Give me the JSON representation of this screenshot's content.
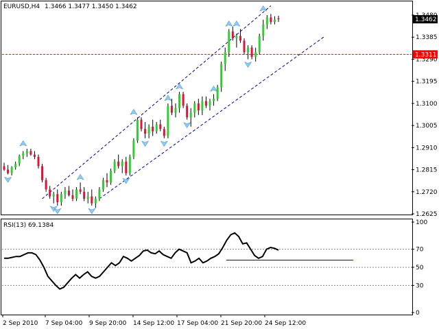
{
  "window": {
    "symbol_label": "EURUSD,H4",
    "ohlc_label": "1.3466 1.3477 1.3450 1.3462"
  },
  "rsi_panel": {
    "label": "RSI(13) 69.1384"
  },
  "colors": {
    "bull_candle": "#32cd32",
    "bear_candle": "#dc143c",
    "wick": "#000000",
    "channel": "#00008b",
    "support_line": "#ff0000",
    "price_badge_current": "#000000",
    "price_badge_support": "#ff0000",
    "rsi_line": "#000000",
    "rsi_trendline": "#0000cd",
    "fractal_arrow": "#87cefa"
  },
  "icons": {
    "fractal_up": "fractal-up-arrow-icon",
    "fractal_down": "fractal-down-arrow-icon"
  },
  "chart_data": [
    {
      "type": "candlestick",
      "title": "EURUSD,H4",
      "ylim": [
        1.2625,
        1.348
      ],
      "y_ticks": [
        "1.3480",
        "1.3385",
        "1.3290",
        "1.3195",
        "1.3100",
        "1.3005",
        "1.2910",
        "1.2815",
        "1.2720",
        "1.2625"
      ],
      "x_labels": [
        "2 Sep 2010",
        "7 Sep 04:00",
        "9 Sep 20:00",
        "14 Sep 12:00",
        "17 Sep 04:00",
        "21 Sep 20:00",
        "24 Sep 12:00"
      ],
      "current_price": "1.3462",
      "support_level": "1.3311",
      "candles": [
        [
          1.283,
          1.2845,
          1.281,
          1.2815
        ],
        [
          1.2815,
          1.2835,
          1.2795,
          1.28
        ],
        [
          1.28,
          1.283,
          1.279,
          1.2825
        ],
        [
          1.2825,
          1.285,
          1.2815,
          1.284
        ],
        [
          1.284,
          1.288,
          1.283,
          1.2875
        ],
        [
          1.2875,
          1.2895,
          1.286,
          1.2885
        ],
        [
          1.2885,
          1.2905,
          1.287,
          1.2895
        ],
        [
          1.2895,
          1.2905,
          1.2875,
          1.288
        ],
        [
          1.288,
          1.2895,
          1.286,
          1.287
        ],
        [
          1.287,
          1.288,
          1.282,
          1.283
        ],
        [
          1.283,
          1.284,
          1.276,
          1.277
        ],
        [
          1.277,
          1.278,
          1.272,
          1.273
        ],
        [
          1.273,
          1.2745,
          1.269,
          1.27
        ],
        [
          1.27,
          1.272,
          1.267,
          1.271
        ],
        [
          1.271,
          1.273,
          1.266,
          1.2675
        ],
        [
          1.2675,
          1.272,
          1.266,
          1.271
        ],
        [
          1.271,
          1.274,
          1.269,
          1.2725
        ],
        [
          1.2725,
          1.2745,
          1.27,
          1.2705
        ],
        [
          1.2705,
          1.273,
          1.268,
          1.269
        ],
        [
          1.269,
          1.274,
          1.268,
          1.273
        ],
        [
          1.273,
          1.276,
          1.271,
          1.272
        ],
        [
          1.272,
          1.274,
          1.268,
          1.269
        ],
        [
          1.269,
          1.272,
          1.267,
          1.27
        ],
        [
          1.27,
          1.273,
          1.266,
          1.267
        ],
        [
          1.267,
          1.27,
          1.265,
          1.269
        ],
        [
          1.269,
          1.274,
          1.268,
          1.273
        ],
        [
          1.273,
          1.278,
          1.272,
          1.277
        ],
        [
          1.277,
          1.28,
          1.274,
          1.276
        ],
        [
          1.276,
          1.282,
          1.275,
          1.281
        ],
        [
          1.281,
          1.286,
          1.28,
          1.285
        ],
        [
          1.285,
          1.288,
          1.282,
          1.283
        ],
        [
          1.283,
          1.286,
          1.28,
          1.285
        ],
        [
          1.285,
          1.287,
          1.279,
          1.28
        ],
        [
          1.28,
          1.288,
          1.279,
          1.287
        ],
        [
          1.287,
          1.295,
          1.286,
          1.294
        ],
        [
          1.294,
          1.304,
          1.293,
          1.303
        ],
        [
          1.303,
          1.304,
          1.298,
          1.299
        ],
        [
          1.299,
          1.302,
          1.295,
          1.297
        ],
        [
          1.297,
          1.301,
          1.295,
          1.3
        ],
        [
          1.3,
          1.303,
          1.296,
          1.298
        ],
        [
          1.298,
          1.302,
          1.297,
          1.301
        ],
        [
          1.301,
          1.303,
          1.298,
          1.299
        ],
        [
          1.299,
          1.3,
          1.295,
          1.296
        ],
        [
          1.296,
          1.31,
          1.295,
          1.309
        ],
        [
          1.309,
          1.312,
          1.305,
          1.306
        ],
        [
          1.306,
          1.31,
          1.304,
          1.308
        ],
        [
          1.308,
          1.315,
          1.306,
          1.314
        ],
        [
          1.314,
          1.315,
          1.308,
          1.309
        ],
        [
          1.309,
          1.31,
          1.303,
          1.304
        ],
        [
          1.304,
          1.308,
          1.3,
          1.306
        ],
        [
          1.306,
          1.311,
          1.304,
          1.31
        ],
        [
          1.31,
          1.312,
          1.305,
          1.307
        ],
        [
          1.307,
          1.313,
          1.305,
          1.311
        ],
        [
          1.311,
          1.313,
          1.308,
          1.309
        ],
        [
          1.309,
          1.312,
          1.307,
          1.311
        ],
        [
          1.311,
          1.314,
          1.309,
          1.312
        ],
        [
          1.312,
          1.318,
          1.311,
          1.317
        ],
        [
          1.317,
          1.328,
          1.315,
          1.327
        ],
        [
          1.327,
          1.334,
          1.324,
          1.332
        ],
        [
          1.332,
          1.342,
          1.33,
          1.341
        ],
        [
          1.341,
          1.343,
          1.337,
          1.338
        ],
        [
          1.338,
          1.34,
          1.334,
          1.339
        ],
        [
          1.339,
          1.342,
          1.336,
          1.337
        ],
        [
          1.337,
          1.338,
          1.331,
          1.332
        ],
        [
          1.332,
          1.335,
          1.329,
          1.334
        ],
        [
          1.334,
          1.335,
          1.329,
          1.33
        ],
        [
          1.33,
          1.334,
          1.328,
          1.332
        ],
        [
          1.332,
          1.34,
          1.331,
          1.339
        ],
        [
          1.339,
          1.346,
          1.337,
          1.344
        ],
        [
          1.344,
          1.348,
          1.342,
          1.347
        ],
        [
          1.347,
          1.3485,
          1.344,
          1.345
        ],
        [
          1.345,
          1.3475,
          1.344,
          1.346
        ],
        [
          1.3466,
          1.3477,
          1.345,
          1.3462
        ]
      ],
      "fractals_up": [
        [
          5,
          1.2905
        ],
        [
          20,
          1.276
        ],
        [
          34,
          1.304
        ],
        [
          43,
          1.31
        ],
        [
          46,
          1.315
        ],
        [
          55,
          1.314
        ],
        [
          59,
          1.342
        ],
        [
          61,
          1.342
        ],
        [
          68,
          1.3485
        ]
      ],
      "fractals_down": [
        [
          1,
          1.2795
        ],
        [
          13,
          1.267
        ],
        [
          14,
          1.266
        ],
        [
          23,
          1.266
        ],
        [
          32,
          1.279
        ],
        [
          37,
          1.295
        ],
        [
          42,
          1.295
        ],
        [
          48,
          1.303
        ],
        [
          64,
          1.329
        ]
      ]
    },
    {
      "type": "line",
      "title": "RSI(13) 69.1384",
      "ylim": [
        0,
        100
      ],
      "y_ticks": [
        "100",
        "70",
        "50",
        "30",
        "0"
      ],
      "levels": [
        70,
        50,
        30
      ],
      "values": [
        60,
        60,
        61,
        62,
        62,
        64,
        66,
        66,
        64,
        58,
        50,
        40,
        35,
        30,
        26,
        28,
        33,
        38,
        42,
        38,
        42,
        45,
        40,
        38,
        40,
        45,
        50,
        55,
        52,
        55,
        62,
        60,
        57,
        60,
        63,
        68,
        69,
        66,
        65,
        68,
        64,
        62,
        60,
        66,
        70,
        68,
        66,
        55,
        57,
        60,
        55,
        57,
        60,
        62,
        65,
        72,
        80,
        86,
        88,
        84,
        76,
        77,
        70,
        63,
        60,
        62,
        70,
        72,
        71,
        69
      ]
    }
  ]
}
